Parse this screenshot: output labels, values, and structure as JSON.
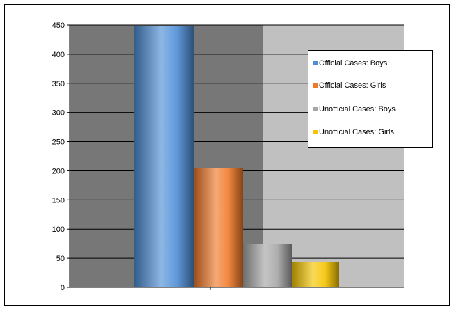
{
  "chart_data": {
    "type": "bar",
    "title": "",
    "xlabel": "",
    "ylabel": "",
    "ylim": [
      0,
      450
    ],
    "yticks": [
      0,
      50,
      100,
      150,
      200,
      250,
      300,
      350,
      400,
      450
    ],
    "grid": true,
    "legend_position": "right",
    "series": [
      {
        "name": "Official Cases: Boys",
        "value": 448,
        "color": "#4f8fd6"
      },
      {
        "name": "Official Cases: Girls",
        "value": 205,
        "color": "#f07a2a"
      },
      {
        "name": "Unofficial Cases: Boys",
        "value": 75,
        "color": "#a6a6a6"
      },
      {
        "name": "Unofficial Cases: Girls",
        "value": 44,
        "color": "#f5c400"
      }
    ],
    "plot_background_colors": [
      "#777777",
      "#c0c0c0"
    ]
  }
}
